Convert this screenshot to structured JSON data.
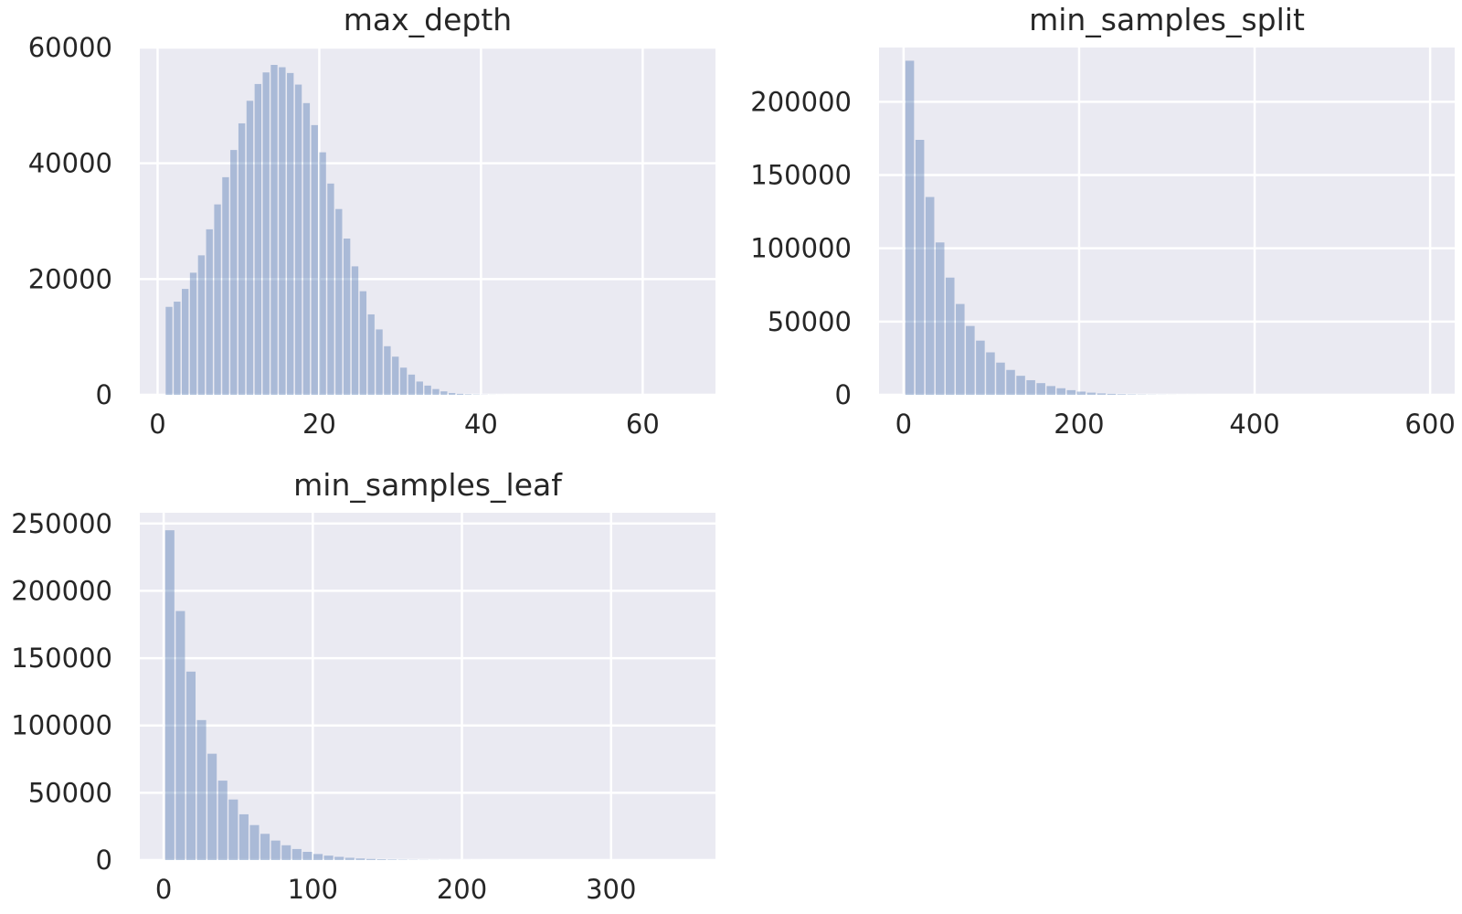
{
  "chart_data": [
    {
      "type": "bar",
      "title": "max_depth",
      "xlabel": "",
      "ylabel": "",
      "xlim": [
        -2.2,
        69
      ],
      "ylim": [
        0,
        60000
      ],
      "xticks": [
        0,
        20,
        40,
        60
      ],
      "yticks": [
        0,
        20000,
        40000,
        60000
      ],
      "grid": true,
      "bins": {
        "start": 1,
        "width": 1,
        "counts": [
          15200,
          16100,
          18300,
          21100,
          24100,
          28600,
          32900,
          37600,
          42300,
          46900,
          50800,
          53700,
          55700,
          57000,
          56600,
          55600,
          53600,
          50400,
          46600,
          41900,
          36500,
          32100,
          27000,
          22200,
          17900,
          13900,
          11300,
          8400,
          6600,
          4700,
          3500,
          2300,
          1600,
          1000,
          600,
          320,
          180,
          100,
          60,
          30,
          15,
          8,
          4,
          2
        ]
      }
    },
    {
      "type": "bar",
      "title": "min_samples_split",
      "xlabel": "",
      "ylabel": "",
      "xlim": [
        -28,
        628
      ],
      "ylim": [
        0,
        237000
      ],
      "xticks": [
        0,
        200,
        400,
        600
      ],
      "yticks": [
        0,
        50000,
        100000,
        150000,
        200000
      ],
      "grid": true,
      "bins": {
        "start": 2,
        "width": 11.5,
        "counts": [
          228000,
          174000,
          135000,
          104000,
          80000,
          62000,
          47000,
          37000,
          29000,
          22000,
          17000,
          13000,
          10000,
          8000,
          6000,
          4500,
          3200,
          2200,
          1500,
          1000,
          700,
          450,
          300,
          200,
          130,
          80,
          50,
          30,
          20,
          10
        ]
      }
    },
    {
      "type": "bar",
      "title": "min_samples_leaf",
      "xlabel": "",
      "ylabel": "",
      "xlim": [
        -16,
        370
      ],
      "ylim": [
        0,
        258000
      ],
      "xticks": [
        0,
        100,
        200,
        300
      ],
      "yticks": [
        0,
        50000,
        100000,
        150000,
        200000,
        250000
      ],
      "grid": true,
      "bins": {
        "start": 1,
        "width": 7.1,
        "counts": [
          245000,
          185000,
          140000,
          104000,
          79000,
          59000,
          45000,
          34000,
          26000,
          19500,
          14500,
          11000,
          8200,
          6100,
          4500,
          3300,
          2400,
          1700,
          1200,
          850,
          600,
          420,
          290,
          200,
          130,
          90,
          60,
          40,
          25,
          15
        ]
      }
    }
  ]
}
